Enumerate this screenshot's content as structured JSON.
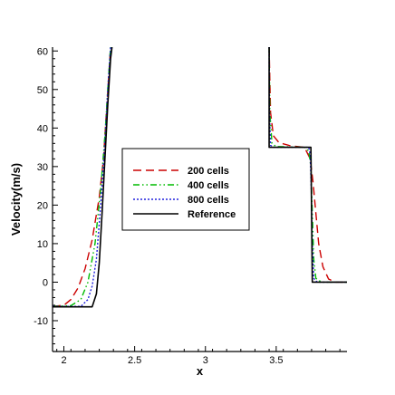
{
  "chart_data": {
    "type": "line",
    "xlabel": "x",
    "ylabel": "Velocity(m/s)",
    "xlim": [
      1.92,
      4.0
    ],
    "ylim": [
      -18,
      61
    ],
    "x_ticks": [
      {
        "value": 2,
        "label": "2"
      },
      {
        "value": 2.5,
        "label": "2.5"
      },
      {
        "value": 3,
        "label": "3"
      },
      {
        "value": 3.5,
        "label": "3.5"
      }
    ],
    "y_ticks": [
      {
        "value": 60,
        "label": "60"
      },
      {
        "value": 50,
        "label": "50"
      },
      {
        "value": 40,
        "label": "40"
      },
      {
        "value": 30,
        "label": "30"
      },
      {
        "value": 20,
        "label": "20"
      },
      {
        "value": 10,
        "label": "10"
      },
      {
        "value": 0,
        "label": "0"
      },
      {
        "value": -10,
        "label": "-10"
      }
    ],
    "legend_position": "center",
    "grid": false,
    "series": [
      {
        "name": "200 cells",
        "color": "#cc0000",
        "dash": "long-dash",
        "segments": [
          [
            [
              1.92,
              -6.3
            ],
            [
              2.0,
              -6.0
            ],
            [
              2.05,
              -4.5
            ],
            [
              2.1,
              -1.5
            ],
            [
              2.15,
              3.5
            ],
            [
              2.2,
              11
            ],
            [
              2.25,
              22
            ],
            [
              2.28,
              32
            ],
            [
              2.3,
              44
            ],
            [
              2.32,
              55
            ],
            [
              2.33,
              61
            ]
          ],
          [
            [
              3.45,
              61
            ],
            [
              3.46,
              44
            ],
            [
              3.48,
              38
            ],
            [
              3.52,
              36.2
            ],
            [
              3.6,
              35.4
            ],
            [
              3.7,
              35
            ],
            [
              3.74,
              32
            ],
            [
              3.76,
              26
            ],
            [
              3.78,
              18
            ],
            [
              3.8,
              10
            ],
            [
              3.83,
              4
            ],
            [
              3.87,
              0.8
            ],
            [
              3.92,
              0
            ],
            [
              4.0,
              0
            ]
          ]
        ]
      },
      {
        "name": "400 cells",
        "color": "#00bb00",
        "dash": "dash-dot-dot",
        "segments": [
          [
            [
              1.92,
              -6.3
            ],
            [
              2.05,
              -6.1
            ],
            [
              2.12,
              -4.5
            ],
            [
              2.17,
              0
            ],
            [
              2.22,
              10
            ],
            [
              2.26,
              24
            ],
            [
              2.29,
              38
            ],
            [
              2.31,
              50
            ],
            [
              2.33,
              61
            ]
          ],
          [
            [
              3.45,
              61
            ],
            [
              3.455,
              44
            ],
            [
              3.47,
              36
            ],
            [
              3.5,
              35.2
            ],
            [
              3.7,
              35
            ],
            [
              3.73,
              34
            ],
            [
              3.745,
              30
            ],
            [
              3.755,
              18
            ],
            [
              3.765,
              6
            ],
            [
              3.78,
              1
            ],
            [
              3.82,
              0
            ],
            [
              4.0,
              0
            ]
          ]
        ]
      },
      {
        "name": "800 cells",
        "color": "#2222dd",
        "dash": "dotted",
        "segments": [
          [
            [
              1.92,
              -6.3
            ],
            [
              2.12,
              -6.3
            ],
            [
              2.17,
              -4.5
            ],
            [
              2.2,
              -1
            ],
            [
              2.23,
              6
            ],
            [
              2.26,
              20
            ],
            [
              2.29,
              36
            ],
            [
              2.31,
              50
            ],
            [
              2.33,
              61
            ]
          ],
          [
            [
              3.45,
              61
            ],
            [
              3.452,
              44
            ],
            [
              3.46,
              35.5
            ],
            [
              3.48,
              35
            ],
            [
              3.73,
              35
            ],
            [
              3.74,
              33
            ],
            [
              3.748,
              24
            ],
            [
              3.755,
              10
            ],
            [
              3.765,
              1
            ],
            [
              3.79,
              0
            ],
            [
              4.0,
              0
            ]
          ]
        ]
      },
      {
        "name": "Reference",
        "color": "#000000",
        "dash": "solid",
        "segments": [
          [
            [
              1.92,
              -6.4
            ],
            [
              2.2,
              -6.4
            ],
            [
              2.23,
              -3
            ],
            [
              2.25,
              5
            ],
            [
              2.27,
              18
            ],
            [
              2.29,
              32
            ],
            [
              2.31,
              46
            ],
            [
              2.33,
              58
            ],
            [
              2.34,
              61
            ]
          ],
          [
            [
              3.45,
              61
            ],
            [
              3.45,
              35
            ],
            [
              3.745,
              35
            ],
            [
              3.755,
              0
            ],
            [
              4.0,
              0
            ]
          ]
        ]
      }
    ]
  }
}
